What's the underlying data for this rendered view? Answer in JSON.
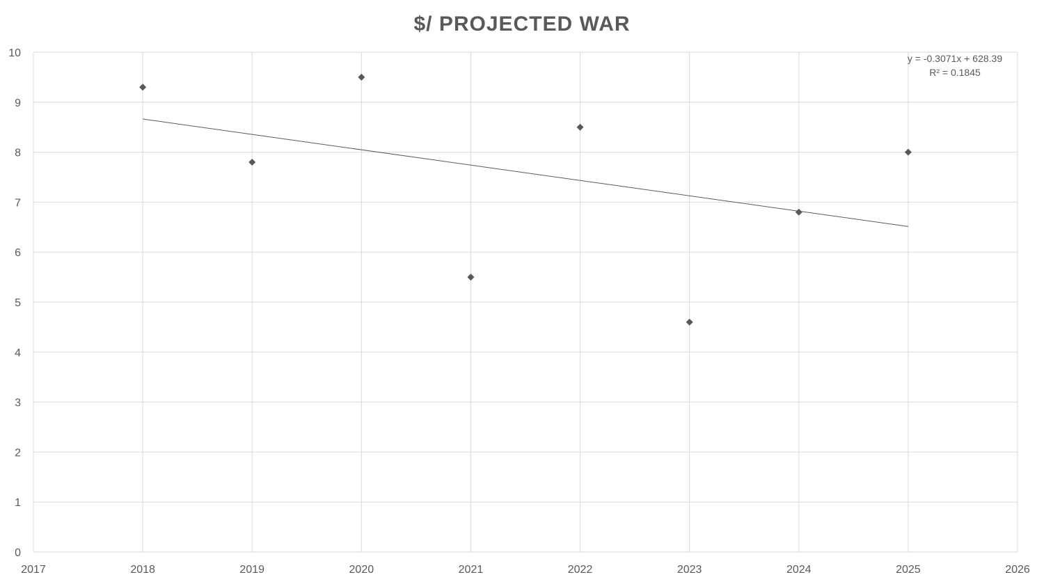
{
  "chart_data": {
    "type": "scatter",
    "title": "$/ PROJECTED WAR",
    "xlabel": "",
    "ylabel": "",
    "xlim": [
      2017,
      2026
    ],
    "ylim": [
      0,
      10
    ],
    "x_ticks": [
      "2017",
      "2018",
      "2019",
      "2020",
      "2021",
      "2022",
      "2023",
      "2024",
      "2025",
      "2026"
    ],
    "y_ticks": [
      "0",
      "1",
      "2",
      "3",
      "4",
      "5",
      "6",
      "7",
      "8",
      "9",
      "10"
    ],
    "grid": true,
    "marker": "diamond",
    "color": "#595959",
    "series": [
      {
        "x": [
          2018,
          2019,
          2020,
          2021,
          2022,
          2023,
          2024,
          2025
        ],
        "y": [
          9.3,
          7.8,
          9.5,
          5.5,
          8.5,
          4.6,
          6.8,
          8.0
        ]
      }
    ],
    "trendline": {
      "type": "linear",
      "slope": -0.3071,
      "intercept": 628.39,
      "x_range": [
        2018,
        2025
      ],
      "equation": "y = -0.3071x + 628.39",
      "r_squared": "R² = 0.1845"
    }
  }
}
